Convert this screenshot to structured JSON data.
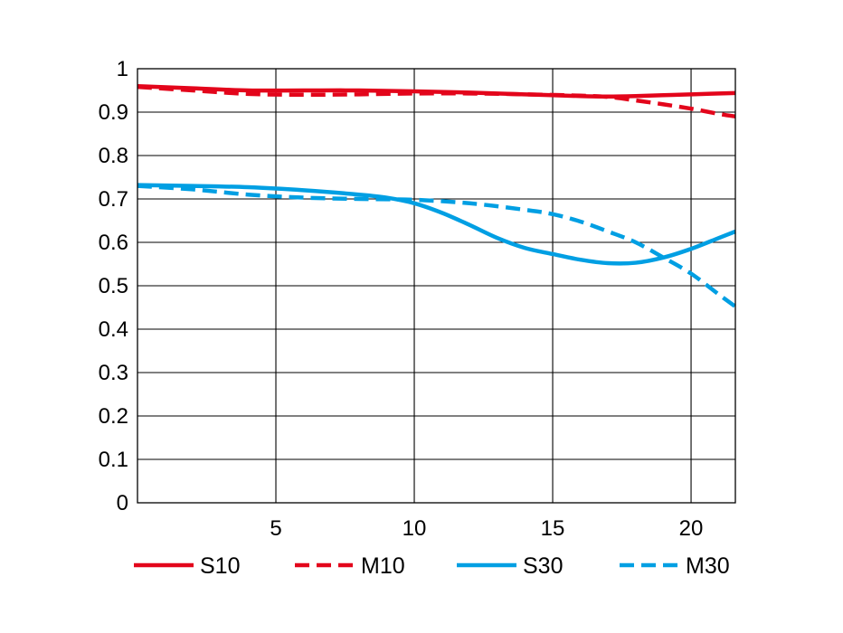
{
  "chart_data": {
    "type": "line",
    "title": "",
    "xlabel": "",
    "ylabel": "",
    "xlim": [
      0,
      21.6
    ],
    "ylim": [
      0,
      1
    ],
    "grid": true,
    "legend_position": "bottom",
    "x_ticks": [
      {
        "value": 5,
        "label": "5"
      },
      {
        "value": 10,
        "label": "10"
      },
      {
        "value": 15,
        "label": "15"
      },
      {
        "value": 20,
        "label": "20"
      }
    ],
    "y_ticks": [
      {
        "value": 0,
        "label": "0"
      },
      {
        "value": 0.1,
        "label": "0.1"
      },
      {
        "value": 0.2,
        "label": "0.2"
      },
      {
        "value": 0.3,
        "label": "0.3"
      },
      {
        "value": 0.4,
        "label": "0.4"
      },
      {
        "value": 0.5,
        "label": "0.5"
      },
      {
        "value": 0.6,
        "label": "0.6"
      },
      {
        "value": 0.7,
        "label": "0.7"
      },
      {
        "value": 0.8,
        "label": "0.8"
      },
      {
        "value": 0.9,
        "label": "0.9"
      },
      {
        "value": 1,
        "label": "1"
      }
    ],
    "series": [
      {
        "name": "S10",
        "color": "#e3051b",
        "dash": false,
        "points": [
          [
            0,
            0.96
          ],
          [
            2,
            0.955
          ],
          [
            4,
            0.95
          ],
          [
            6,
            0.95
          ],
          [
            8,
            0.95
          ],
          [
            10,
            0.948
          ],
          [
            12,
            0.945
          ],
          [
            14,
            0.941
          ],
          [
            16,
            0.937
          ],
          [
            17,
            0.936
          ],
          [
            18,
            0.937
          ],
          [
            19,
            0.939
          ],
          [
            20,
            0.941
          ],
          [
            21.6,
            0.944
          ]
        ]
      },
      {
        "name": "M10",
        "color": "#e3051b",
        "dash": true,
        "points": [
          [
            0,
            0.958
          ],
          [
            2,
            0.95
          ],
          [
            4,
            0.942
          ],
          [
            6,
            0.94
          ],
          [
            8,
            0.941
          ],
          [
            10,
            0.943
          ],
          [
            12,
            0.943
          ],
          [
            14,
            0.941
          ],
          [
            16,
            0.938
          ],
          [
            17,
            0.935
          ],
          [
            18,
            0.927
          ],
          [
            19,
            0.918
          ],
          [
            20,
            0.908
          ],
          [
            21,
            0.896
          ],
          [
            21.6,
            0.89
          ]
        ]
      },
      {
        "name": "S30",
        "color": "#009fe3",
        "dash": false,
        "points": [
          [
            0,
            0.732
          ],
          [
            2,
            0.73
          ],
          [
            4,
            0.727
          ],
          [
            6,
            0.72
          ],
          [
            8,
            0.71
          ],
          [
            9,
            0.703
          ],
          [
            10,
            0.69
          ],
          [
            11,
            0.668
          ],
          [
            12,
            0.64
          ],
          [
            13,
            0.61
          ],
          [
            14,
            0.587
          ],
          [
            15,
            0.573
          ],
          [
            16,
            0.56
          ],
          [
            17,
            0.552
          ],
          [
            18,
            0.553
          ],
          [
            19,
            0.565
          ],
          [
            20,
            0.585
          ],
          [
            21,
            0.61
          ],
          [
            21.6,
            0.625
          ]
        ]
      },
      {
        "name": "M30",
        "color": "#009fe3",
        "dash": true,
        "points": [
          [
            0,
            0.73
          ],
          [
            2,
            0.722
          ],
          [
            4,
            0.71
          ],
          [
            6,
            0.703
          ],
          [
            8,
            0.7
          ],
          [
            10,
            0.698
          ],
          [
            12,
            0.69
          ],
          [
            14,
            0.675
          ],
          [
            15,
            0.665
          ],
          [
            16,
            0.648
          ],
          [
            17,
            0.625
          ],
          [
            18,
            0.6
          ],
          [
            19,
            0.565
          ],
          [
            20,
            0.528
          ],
          [
            21,
            0.48
          ],
          [
            21.6,
            0.452
          ]
        ]
      }
    ]
  }
}
